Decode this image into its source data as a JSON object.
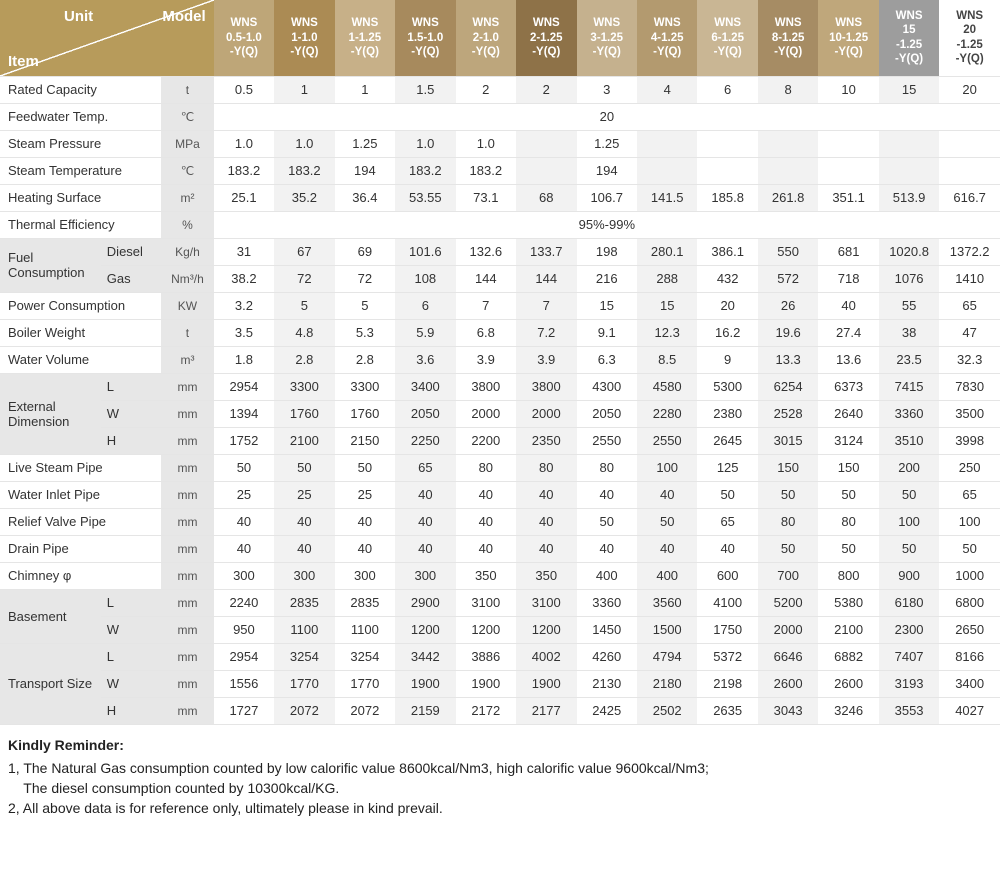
{
  "header": {
    "unit": "Unit",
    "model": "Model",
    "item": "Item"
  },
  "models": [
    "WNS 0.5-1.0 -Y(Q)",
    "WNS 1-1.0 -Y(Q)",
    "WNS 1-1.25 -Y(Q)",
    "WNS 1.5-1.0 -Y(Q)",
    "WNS 2-1.0 -Y(Q)",
    "WNS 2-1.25 -Y(Q)",
    "WNS 3-1.25 -Y(Q)",
    "WNS 4-1.25 -Y(Q)",
    "WNS 6-1.25 -Y(Q)",
    "WNS 8-1.25 -Y(Q)",
    "WNS 10-1.25 -Y(Q)",
    "WNS 15 -1.25 -Y(Q)",
    "WNS 20 -1.25 -Y(Q)"
  ],
  "model_colors": [
    "m0",
    "m1",
    "m2",
    "m3",
    "m4",
    "m5",
    "m6",
    "m7",
    "m8",
    "m9",
    "m10",
    "m11",
    "m12"
  ],
  "rows": [
    {
      "label": "Rated Capacity",
      "unit": "t",
      "vals": [
        "0.5",
        "1",
        "1",
        "1.5",
        "2",
        "2",
        "3",
        "4",
        "6",
        "8",
        "10",
        "15",
        "20"
      ]
    },
    {
      "label": "Feedwater Temp.",
      "unit": "℃",
      "span": "20"
    },
    {
      "label": "Steam Pressure",
      "unit": "MPa",
      "vals": [
        "1.0",
        "1.0",
        "1.25",
        "1.0",
        "1.0",
        "",
        "1.25",
        "",
        "",
        "",
        "",
        "",
        ""
      ]
    },
    {
      "label": "Steam Temperature",
      "unit": "℃",
      "vals": [
        "183.2",
        "183.2",
        "194",
        "183.2",
        "183.2",
        "",
        "194",
        "",
        "",
        "",
        "",
        "",
        ""
      ]
    },
    {
      "label": "Heating Surface",
      "unit": "m²",
      "vals": [
        "25.1",
        "35.2",
        "36.4",
        "53.55",
        "73.1",
        "68",
        "106.7",
        "141.5",
        "185.8",
        "261.8",
        "351.1",
        "513.9",
        "616.7"
      ]
    },
    {
      "label": "Thermal Efficiency",
      "unit": "%",
      "span": "95%-99%"
    },
    {
      "group": "Fuel Consumption",
      "sub": "Diesel",
      "unit": "Kg/h",
      "vals": [
        "31",
        "67",
        "69",
        "101.6",
        "132.6",
        "133.7",
        "198",
        "280.1",
        "386.1",
        "550",
        "681",
        "1020.8",
        "1372.2"
      ],
      "shade": true
    },
    {
      "sub": "Gas",
      "unit": "Nm³/h",
      "vals": [
        "38.2",
        "72",
        "72",
        "108",
        "144",
        "144",
        "216",
        "288",
        "432",
        "572",
        "718",
        "1076",
        "1410"
      ],
      "shade": true
    },
    {
      "label": "Power Consumption",
      "unit": "KW",
      "vals": [
        "3.2",
        "5",
        "5",
        "6",
        "7",
        "7",
        "15",
        "15",
        "20",
        "26",
        "40",
        "55",
        "65"
      ]
    },
    {
      "label": "Boiler Weight",
      "unit": "t",
      "vals": [
        "3.5",
        "4.8",
        "5.3",
        "5.9",
        "6.8",
        "7.2",
        "9.1",
        "12.3",
        "16.2",
        "19.6",
        "27.4",
        "38",
        "47"
      ]
    },
    {
      "label": "Water Volume",
      "unit": "m³",
      "vals": [
        "1.8",
        "2.8",
        "2.8",
        "3.6",
        "3.9",
        "3.9",
        "6.3",
        "8.5",
        "9",
        "13.3",
        "13.6",
        "23.5",
        "32.3"
      ]
    },
    {
      "group": "External Dimension",
      "sub": "L",
      "unit": "mm",
      "vals": [
        "2954",
        "3300",
        "3300",
        "3400",
        "3800",
        "3800",
        "4300",
        "4580",
        "5300",
        "6254",
        "6373",
        "7415",
        "7830"
      ],
      "shade": true
    },
    {
      "sub": "W",
      "unit": "mm",
      "vals": [
        "1394",
        "1760",
        "1760",
        "2050",
        "2000",
        "2000",
        "2050",
        "2280",
        "2380",
        "2528",
        "2640",
        "3360",
        "3500"
      ],
      "shade": true
    },
    {
      "sub": "H",
      "unit": "mm",
      "vals": [
        "1752",
        "2100",
        "2150",
        "2250",
        "2200",
        "2350",
        "2550",
        "2550",
        "2645",
        "3015",
        "3124",
        "3510",
        "3998"
      ],
      "shade": true
    },
    {
      "label": "Live Steam Pipe",
      "unit": "mm",
      "vals": [
        "50",
        "50",
        "50",
        "65",
        "80",
        "80",
        "80",
        "100",
        "125",
        "150",
        "150",
        "200",
        "250"
      ]
    },
    {
      "label": "Water Inlet Pipe",
      "unit": "mm",
      "vals": [
        "25",
        "25",
        "25",
        "40",
        "40",
        "40",
        "40",
        "40",
        "50",
        "50",
        "50",
        "50",
        "65"
      ]
    },
    {
      "label": "Relief Valve Pipe",
      "unit": "mm",
      "vals": [
        "40",
        "40",
        "40",
        "40",
        "40",
        "40",
        "50",
        "50",
        "65",
        "80",
        "80",
        "100",
        "100"
      ]
    },
    {
      "label": "Drain Pipe",
      "unit": "mm",
      "vals": [
        "40",
        "40",
        "40",
        "40",
        "40",
        "40",
        "40",
        "40",
        "40",
        "50",
        "50",
        "50",
        "50"
      ]
    },
    {
      "label": "Chimney φ",
      "unit": "mm",
      "vals": [
        "300",
        "300",
        "300",
        "300",
        "350",
        "350",
        "400",
        "400",
        "600",
        "700",
        "800",
        "900",
        "1000"
      ]
    },
    {
      "group": "Basement",
      "sub": "L",
      "unit": "mm",
      "vals": [
        "2240",
        "2835",
        "2835",
        "2900",
        "3100",
        "3100",
        "3360",
        "3560",
        "4100",
        "5200",
        "5380",
        "6180",
        "6800"
      ],
      "shade": true
    },
    {
      "sub": "W",
      "unit": "mm",
      "vals": [
        "950",
        "1100",
        "1100",
        "1200",
        "1200",
        "1200",
        "1450",
        "1500",
        "1750",
        "2000",
        "2100",
        "2300",
        "2650"
      ],
      "shade": true
    },
    {
      "group": "Transport Size",
      "sub": "L",
      "unit": "mm",
      "vals": [
        "2954",
        "3254",
        "3254",
        "3442",
        "3886",
        "4002",
        "4260",
        "4794",
        "5372",
        "6646",
        "6882",
        "7407",
        "8166"
      ],
      "shade": true
    },
    {
      "sub": "W",
      "unit": "mm",
      "vals": [
        "1556",
        "1770",
        "1770",
        "1900",
        "1900",
        "1900",
        "2130",
        "2180",
        "2198",
        "2600",
        "2600",
        "3193",
        "3400"
      ],
      "shade": true
    },
    {
      "sub": "H",
      "unit": "mm",
      "vals": [
        "1727",
        "2072",
        "2072",
        "2159",
        "2172",
        "2177",
        "2425",
        "2502",
        "2635",
        "3043",
        "3246",
        "3553",
        "4027"
      ],
      "shade": true
    }
  ],
  "group_spans": {
    "Fuel Consumption": 2,
    "External Dimension": 3,
    "Basement": 2,
    "Transport Size": 3
  },
  "notes": {
    "title": "Kindly Reminder:",
    "lines": [
      "1, The Natural Gas consumption counted by low calorific value 8600kcal/Nm3, high calorific value 9600kcal/Nm3;",
      "    The diesel consumption counted by 10300kcal/KG.",
      "2, All above data is for reference only, ultimately please in kind prevail."
    ]
  }
}
